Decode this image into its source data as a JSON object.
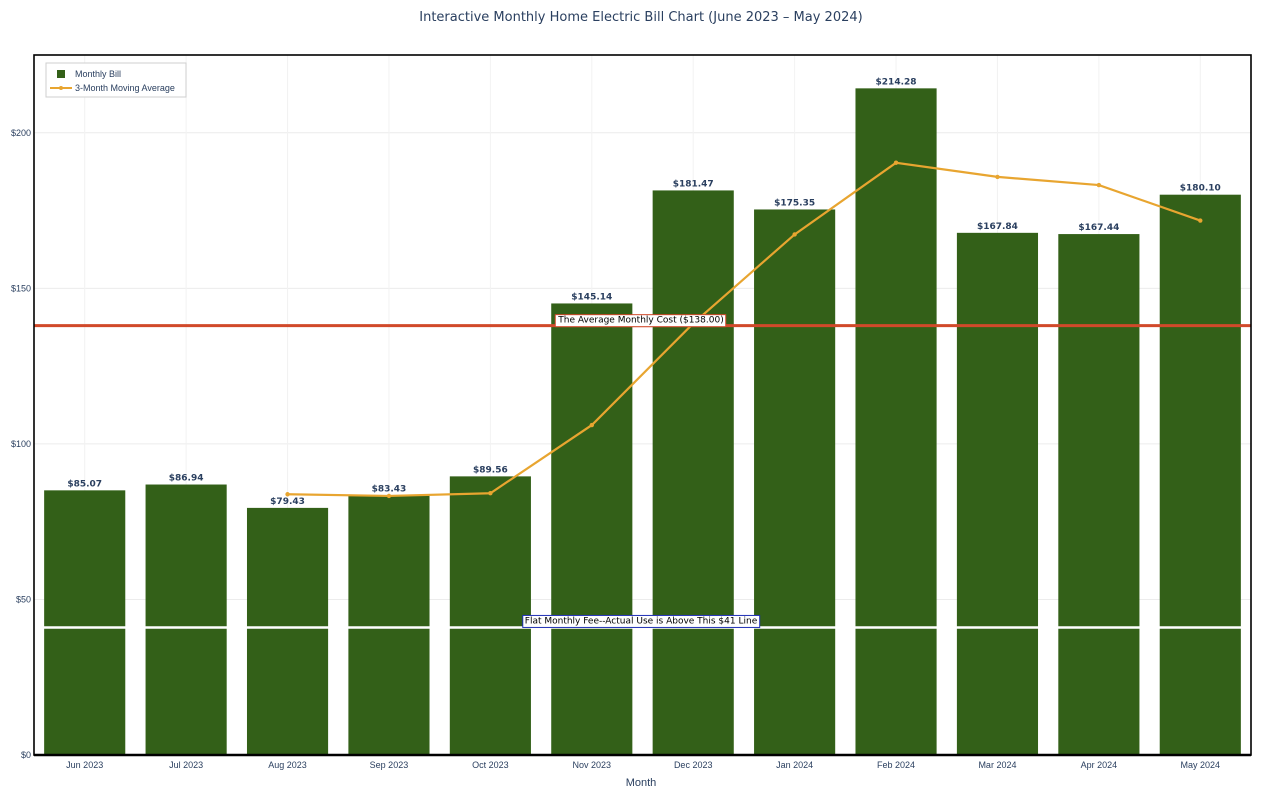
{
  "chart_data": {
    "type": "bar",
    "title": "Interactive Monthly Home Electric Bill Chart (June 2023 – May 2024)",
    "xlabel": "Month",
    "ylabel": "",
    "ylim": [
      0,
      225
    ],
    "yticks": [
      0,
      50,
      100,
      150,
      200
    ],
    "ytick_labels": [
      "$0",
      "$50",
      "$100",
      "$150",
      "$200"
    ],
    "grid": true,
    "legend_position": "top-left",
    "categories": [
      "Jun 2023",
      "Jul 2023",
      "Aug 2023",
      "Sep 2023",
      "Oct 2023",
      "Nov 2023",
      "Dec 2023",
      "Jan 2024",
      "Feb 2024",
      "Mar 2024",
      "Apr 2024",
      "May 2024"
    ],
    "series": [
      {
        "name": "Monthly Bill",
        "type": "bar",
        "color": "#336018",
        "values": [
          85.07,
          86.94,
          79.43,
          83.43,
          89.56,
          145.14,
          181.47,
          175.35,
          214.28,
          167.84,
          167.44,
          180.1
        ],
        "labels": [
          "$85.07",
          "$86.94",
          "$79.43",
          "$83.43",
          "$89.56",
          "$145.14",
          "$181.47",
          "$175.35",
          "$214.28",
          "$167.84",
          "$167.44",
          "$180.10"
        ]
      },
      {
        "name": "3-Month Moving Average",
        "type": "line",
        "color": "#e8a530",
        "values": [
          null,
          null,
          83.81,
          83.27,
          84.14,
          106.04,
          138.72,
          167.32,
          190.37,
          185.82,
          183.19,
          171.79
        ]
      }
    ],
    "reference_lines": [
      {
        "value": 138.0,
        "color": "#d1492a",
        "label": "The Average Monthly Cost ($138.00)",
        "border": "#d1492a"
      },
      {
        "value": 41.0,
        "color": "#ffffff",
        "label": "Flat Monthly Fee--Actual Use is Above This $41 Line",
        "border": "#1f2fb5"
      }
    ]
  }
}
